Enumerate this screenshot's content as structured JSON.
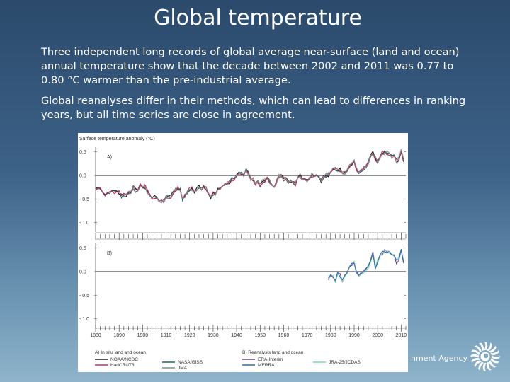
{
  "slide": {
    "title": "Global temperature",
    "paragraph1": "Three independent long records of global average near-surface (land and ocean) annual temperature show that the decade between 2002 and 2011 was 0.77 to 0.80 °C warmer than the pre-industrial average.",
    "paragraph2": "Global reanalyses differ in their methods, which can lead to differences in ranking years, but all time series are close in agreement.",
    "footer_text": "nment Agency",
    "logo_icon": "sun-swirl-icon"
  },
  "chart_data": {
    "type": "line",
    "title": "Surface temperature anomaly (°C)",
    "xlim": [
      1880,
      2012
    ],
    "x_ticks": [
      "1880",
      "1890",
      "1900",
      "1910",
      "1920",
      "1930",
      "1940",
      "1950",
      "1960",
      "1970",
      "1980",
      "1990",
      "2000",
      "2010"
    ],
    "panels": [
      {
        "label": "A)",
        "ylim": [
          -1.2,
          0.6
        ],
        "y_ticks": [
          "0.5",
          "0.0",
          "- 0.5",
          "- 1.0"
        ],
        "y_tick_values": [
          0.5,
          0.0,
          -0.5,
          -1.0
        ],
        "legend_title": "A) In situ land and ocean",
        "series": [
          {
            "name": "NOAA/NCDC",
            "color": "#1a1a1a",
            "x_start": 1880,
            "x_end": 2011
          },
          {
            "name": "NASA/GISS",
            "color": "#1f5e6e",
            "x_start": 1880,
            "x_end": 2011
          },
          {
            "name": "HadCRUT3",
            "color": "#c0305a",
            "x_start": 1880,
            "x_end": 2011
          },
          {
            "name": "JMA",
            "color": "#8a8a8a",
            "x_start": 1891,
            "x_end": 2011
          }
        ],
        "anchors": [
          [
            1880,
            -0.28
          ],
          [
            1884,
            -0.4
          ],
          [
            1888,
            -0.3
          ],
          [
            1892,
            -0.42
          ],
          [
            1896,
            -0.3
          ],
          [
            1900,
            -0.22
          ],
          [
            1904,
            -0.48
          ],
          [
            1909,
            -0.5
          ],
          [
            1911,
            -0.46
          ],
          [
            1915,
            -0.22
          ],
          [
            1917,
            -0.46
          ],
          [
            1920,
            -0.34
          ],
          [
            1926,
            -0.22
          ],
          [
            1929,
            -0.42
          ],
          [
            1937,
            -0.14
          ],
          [
            1941,
            0.02
          ],
          [
            1944,
            0.06
          ],
          [
            1946,
            -0.08
          ],
          [
            1950,
            -0.2
          ],
          [
            1953,
            -0.04
          ],
          [
            1956,
            -0.24
          ],
          [
            1958,
            0.0
          ],
          [
            1964,
            -0.2
          ],
          [
            1967,
            -0.04
          ],
          [
            1971,
            -0.1
          ],
          [
            1973,
            0.04
          ],
          [
            1976,
            -0.12
          ],
          [
            1980,
            0.1
          ],
          [
            1983,
            0.14
          ],
          [
            1986,
            0.08
          ],
          [
            1990,
            0.26
          ],
          [
            1992,
            0.06
          ],
          [
            1995,
            0.24
          ],
          [
            1998,
            0.48
          ],
          [
            2000,
            0.26
          ],
          [
            2002,
            0.44
          ],
          [
            2005,
            0.48
          ],
          [
            2008,
            0.3
          ],
          [
            2010,
            0.5
          ],
          [
            2011,
            0.36
          ]
        ]
      },
      {
        "label": "B)",
        "ylim": [
          -1.2,
          0.6
        ],
        "y_ticks": [
          "0.5",
          "0.0",
          "- 0.5",
          "- 1.0"
        ],
        "y_tick_values": [
          0.5,
          0.0,
          -0.5,
          -1.0
        ],
        "legend_title": "B) Reanalysis land and ocean",
        "series": [
          {
            "name": "ERA-Interim",
            "color": "#6a3fa0",
            "x_start": 1979,
            "x_end": 2011
          },
          {
            "name": "JRA-25/JCDAS",
            "color": "#7fd6a6",
            "x_start": 1979,
            "x_end": 2011
          },
          {
            "name": "MERRA",
            "color": "#2d6fb0",
            "x_start": 1979,
            "x_end": 2011
          }
        ],
        "anchors": [
          [
            1979,
            -0.1
          ],
          [
            1980,
            -0.05
          ],
          [
            1982,
            -0.2
          ],
          [
            1983,
            0.0
          ],
          [
            1985,
            -0.15
          ],
          [
            1987,
            0.0
          ],
          [
            1988,
            0.1
          ],
          [
            1990,
            0.15
          ],
          [
            1992,
            -0.08
          ],
          [
            1995,
            0.1
          ],
          [
            1997,
            0.2
          ],
          [
            1998,
            0.4
          ],
          [
            1999,
            0.1
          ],
          [
            2001,
            0.3
          ],
          [
            2003,
            0.4
          ],
          [
            2005,
            0.45
          ],
          [
            2008,
            0.2
          ],
          [
            2010,
            0.45
          ],
          [
            2011,
            0.25
          ]
        ]
      }
    ]
  }
}
